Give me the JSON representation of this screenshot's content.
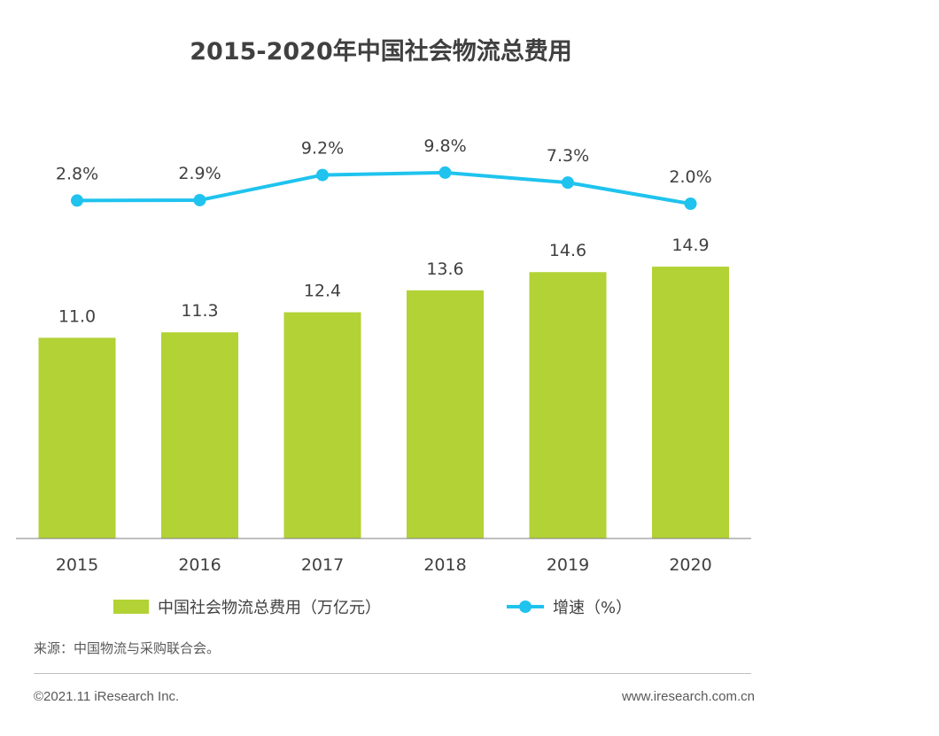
{
  "chart_data": {
    "type": "bar",
    "title": "2015-2020年中国社会物流总费用",
    "categories": [
      "2015",
      "2016",
      "2017",
      "2018",
      "2019",
      "2020"
    ],
    "series": [
      {
        "name": "中国社会物流总费用（万亿元）",
        "type": "bar",
        "values": [
          11.0,
          11.3,
          12.4,
          13.6,
          14.6,
          14.9
        ],
        "labels": [
          "11.0",
          "11.3",
          "12.4",
          "13.6",
          "14.6",
          "14.9"
        ],
        "color": "#b2d235"
      },
      {
        "name": "增速（%）",
        "type": "line",
        "values": [
          2.8,
          2.9,
          9.2,
          9.8,
          7.3,
          2.0
        ],
        "labels": [
          "2.8%",
          "2.9%",
          "9.2%",
          "9.8%",
          "7.3%",
          "2.0%"
        ],
        "color": "#1fc3ee"
      }
    ],
    "grid": false,
    "legend": "bottom"
  },
  "source": "来源：中国物流与采购联合会。",
  "footer": {
    "copyright": "©2021.11 iResearch Inc.",
    "website": "www.iresearch.com.cn"
  }
}
